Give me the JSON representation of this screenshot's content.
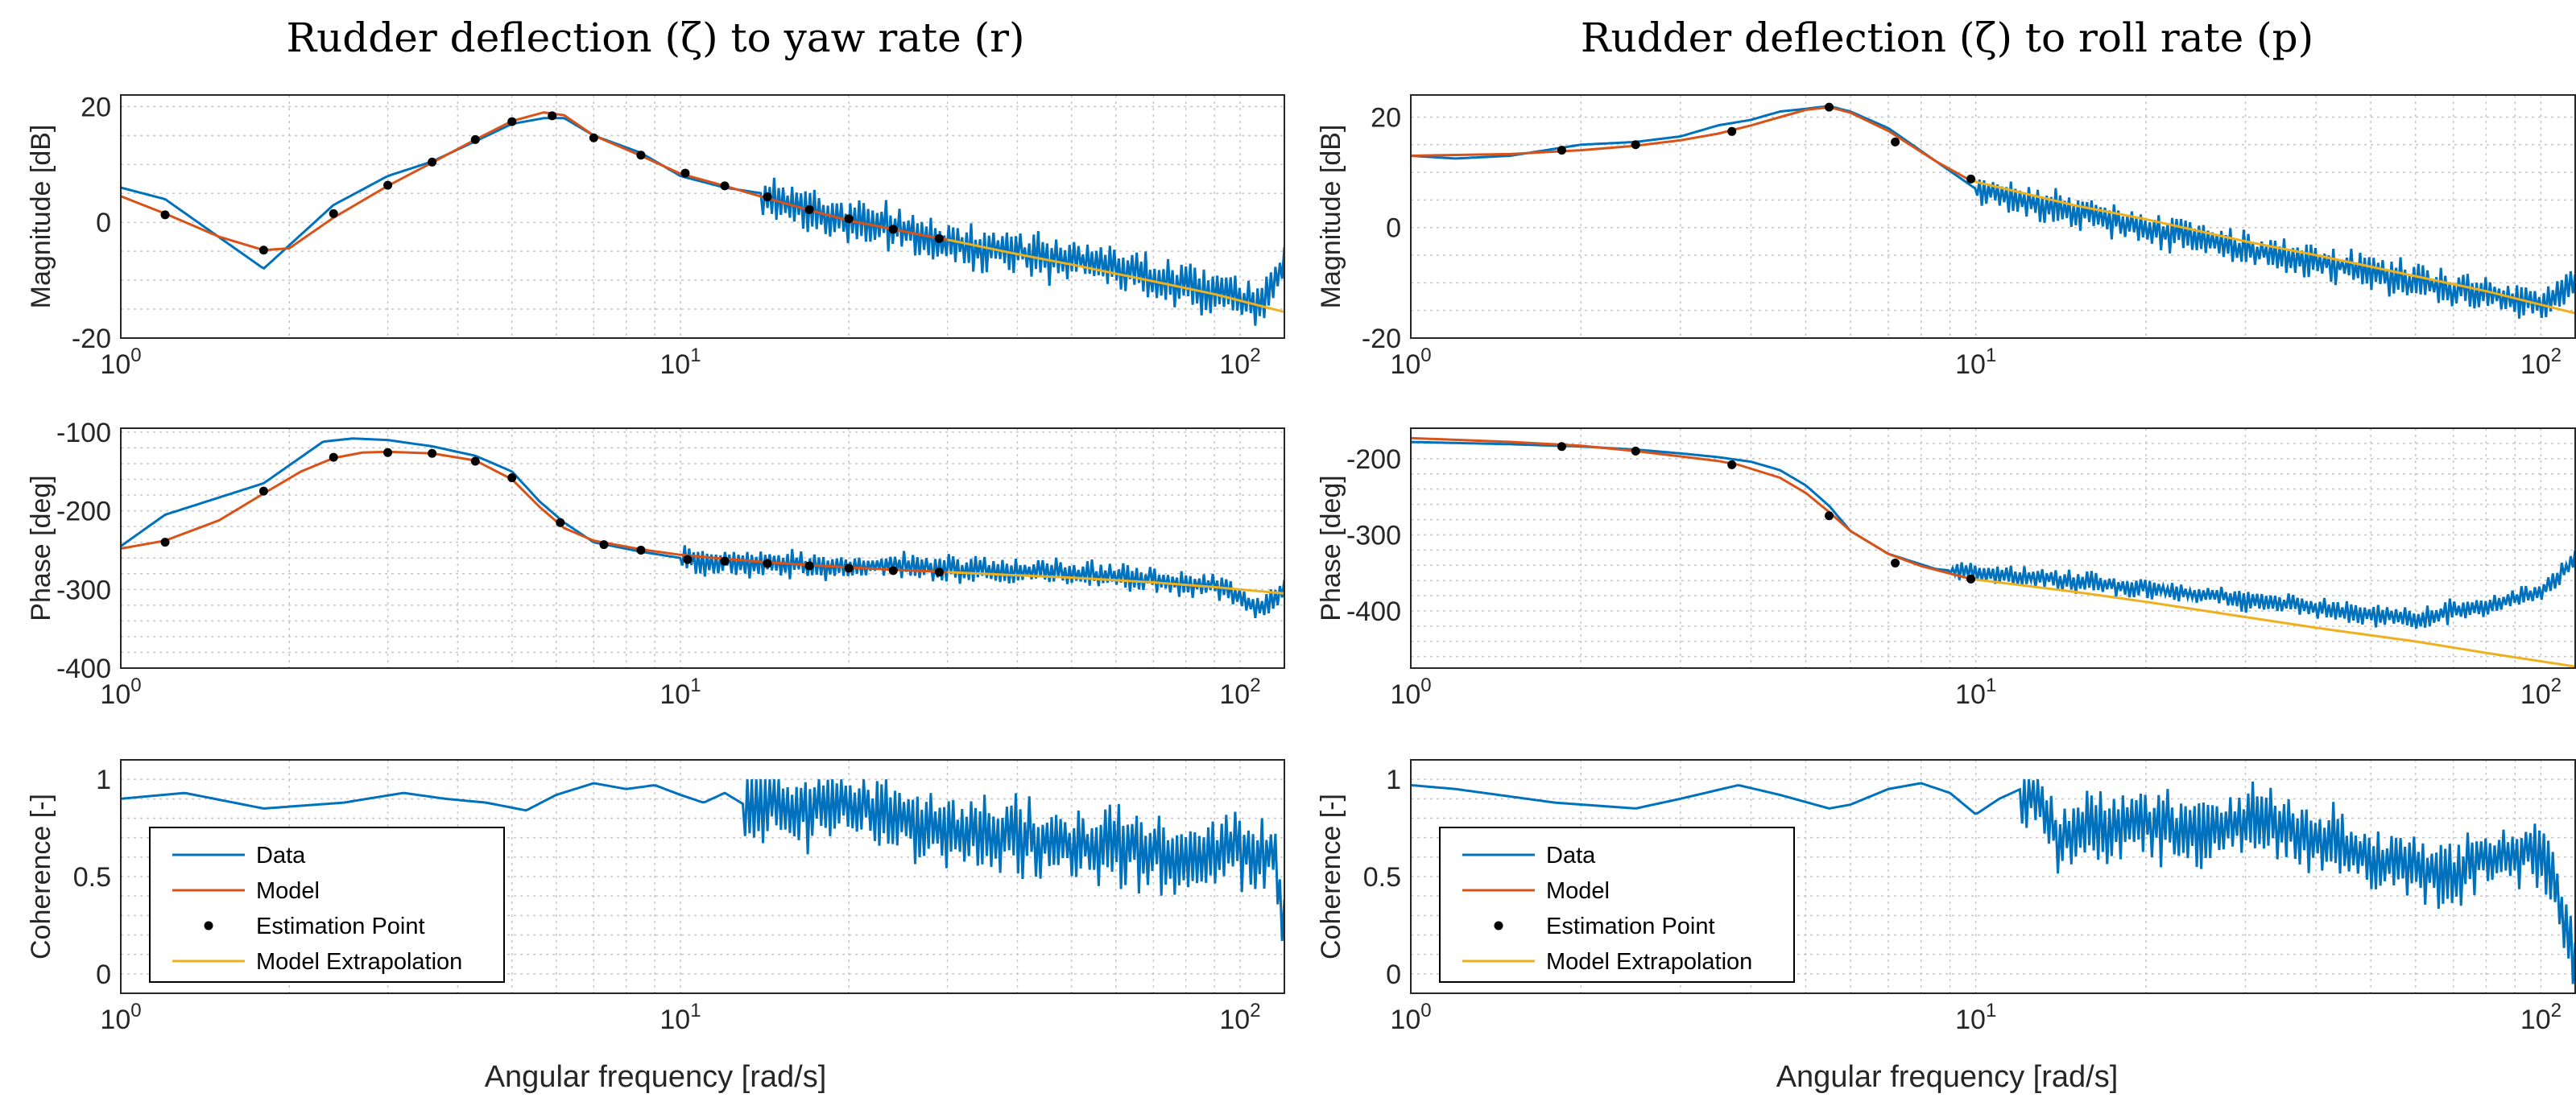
{
  "colors": {
    "data": "#0072BD",
    "model": "#D95319",
    "extrapolation": "#EDB120",
    "estimation": "#000000",
    "grid": "#c6c6c6",
    "axis": "#262626"
  },
  "legend": {
    "data": "Data",
    "model": "Model",
    "estimation": "Estimation Point",
    "extrapolation": "Model Extrapolation"
  },
  "xlabel": "Angular frequency [rad/s]",
  "chart_data": [
    {
      "type": "line",
      "title": "Rudder deflection (ζ) to yaw rate (r)",
      "xscale": "log",
      "xlim": [
        1,
        120
      ],
      "x_ticks": [
        "10^0",
        "10^1",
        "10^2"
      ],
      "panels": [
        {
          "name": "magnitude",
          "ylabel": "Magnitude [dB]",
          "ylim": [
            -20,
            22
          ],
          "yticks": [
            -20,
            0,
            20
          ],
          "data": {
            "x": [
              1,
              1.2,
              1.8,
              2.4,
              3,
              3.6,
              4.3,
              5,
              5.7,
              6.2,
              7,
              8.5,
              10,
              12,
              14,
              17,
              20,
              24,
              28,
              32,
              38,
              45,
              55,
              70,
              90,
              110,
              120
            ],
            "y": [
              6,
              4,
              -8,
              3,
              8,
              10.5,
              14,
              17,
              18,
              18,
              15,
              12,
              8,
              6,
              5,
              2,
              0,
              -1,
              -3,
              -4,
              -5,
              -6,
              -7,
              -10,
              -12,
              -14,
              -7
            ]
          },
          "model": {
            "x": [
              1,
              1.2,
              1.5,
              1.8,
              2,
              2.4,
              3,
              3.6,
              4.3,
              5,
              5.7,
              6.2,
              7,
              8.5,
              10,
              12,
              14,
              17,
              20,
              24,
              28,
              30
            ],
            "y": [
              4.5,
              1.5,
              -2.5,
              -4.8,
              -4.5,
              0.8,
              6.3,
              10.3,
              14.3,
              17.5,
              19,
              18.5,
              15,
              11.5,
              8.4,
              6.3,
              4.4,
              2.1,
              0.3,
              -1.2,
              -2.5,
              -3
            ]
          },
          "extrapolation": {
            "x": [
              30,
              40,
              50,
              70,
              90,
              120
            ],
            "y": [
              -3,
              -5.5,
              -7.3,
              -10.2,
              -12.4,
              -15.5
            ]
          },
          "estimation": {
            "x": [
              1.2,
              1.8,
              2.4,
              3,
              3.6,
              4.3,
              5,
              5.9,
              7,
              8.5,
              10.2,
              12,
              14.3,
              17,
              20,
              24,
              29
            ],
            "y": [
              1.3,
              -4.8,
              1.5,
              6.4,
              10.4,
              14.3,
              17.4,
              18.4,
              14.6,
              11.6,
              8.5,
              6.3,
              4.4,
              2.2,
              0.6,
              -1.2,
              -2.8
            ]
          },
          "ripple": {
            "x_start": 14,
            "amplitude": 5,
            "seed": 11
          }
        },
        {
          "name": "phase",
          "ylabel": "Phase [deg]",
          "ylim": [
            -400,
            -95
          ],
          "yticks": [
            -400,
            -300,
            -200,
            -100
          ],
          "data": {
            "x": [
              1,
              1.2,
              1.8,
              2.3,
              2.6,
              3,
              3.6,
              4.3,
              5,
              5.6,
              6.2,
              7,
              8.5,
              10,
              12,
              14,
              17,
              20,
              24,
              28,
              32,
              38,
              45,
              55,
              70,
              90,
              110,
              120
            ],
            "y": [
              -245,
              -205,
              -165,
              -112,
              -108,
              -110,
              -118,
              -130,
              -150,
              -188,
              -215,
              -240,
              -252,
              -260,
              -265,
              -268,
              -270,
              -272,
              -268,
              -273,
              -275,
              -276,
              -278,
              -282,
              -288,
              -296,
              -325,
              -300
            ]
          },
          "model": {
            "x": [
              1,
              1.2,
              1.5,
              1.8,
              2.1,
              2.4,
              2.7,
              3,
              3.6,
              4.3,
              5,
              5.6,
              6.2,
              7,
              8.5,
              10,
              12,
              14,
              17,
              20,
              24,
              28,
              30
            ],
            "y": [
              -248,
              -238,
              -212,
              -178,
              -150,
              -133,
              -126,
              -125,
              -127,
              -136,
              -160,
              -195,
              -222,
              -238,
              -249,
              -256,
              -261,
              -265,
              -269,
              -272,
              -275,
              -277,
              -278
            ]
          },
          "extrapolation": {
            "x": [
              30,
              40,
              50,
              70,
              90,
              120
            ],
            "y": [
              -278,
              -282,
              -285,
              -291,
              -297,
              -305
            ]
          },
          "estimation": {
            "x": [
              1.2,
              1.8,
              2.4,
              3,
              3.6,
              4.3,
              5,
              6.1,
              7.3,
              8.5,
              10.3,
              12,
              14.3,
              17,
              20,
              24,
              29
            ],
            "y": [
              -240,
              -175,
              -132,
              -126,
              -127,
              -137,
              -158,
              -215,
              -243,
              -250,
              -262,
              -264,
              -267,
              -270,
              -273,
              -276,
              -278
            ]
          },
          "ripple": {
            "x_start": 10,
            "amplitude": 22,
            "seed": 23
          }
        },
        {
          "name": "coherence",
          "ylabel": "Coherence [-]",
          "ylim": [
            -0.1,
            1.1
          ],
          "yticks": [
            0,
            0.5,
            1
          ],
          "data": {
            "x": [
              1,
              1.3,
              1.8,
              2.5,
              3.2,
              3.8,
              4.5,
              5.3,
              6,
              7,
              8,
              9,
              10,
              11,
              12,
              13,
              14,
              16,
              20,
              25,
              30,
              40,
              60,
              80,
              100,
              115,
              120
            ],
            "y": [
              0.9,
              0.93,
              0.85,
              0.88,
              0.93,
              0.9,
              0.88,
              0.84,
              0.92,
              0.98,
              0.95,
              0.97,
              0.92,
              0.88,
              0.93,
              0.87,
              0.9,
              0.85,
              0.88,
              0.8,
              0.75,
              0.7,
              0.65,
              0.6,
              0.65,
              0.6,
              0.2
            ]
          },
          "ripple": {
            "x_start": 13,
            "amplitude": 0.25,
            "seed": 37
          }
        }
      ]
    },
    {
      "type": "line",
      "title": "Rudder deflection (ζ) to roll rate (p)",
      "xscale": "log",
      "xlim": [
        1,
        115
      ],
      "x_ticks": [
        "10^0",
        "10^1",
        "10^2"
      ],
      "panels": [
        {
          "name": "magnitude",
          "ylabel": "Magnitude [dB]",
          "ylim": [
            -20,
            24
          ],
          "yticks": [
            -20,
            0,
            20
          ],
          "data": {
            "x": [
              1,
              1.2,
              1.5,
              2,
              2.5,
              3,
              3.5,
              4,
              4.5,
              5,
              5.5,
              6,
              7,
              8.5,
              10,
              12,
              15,
              20,
              25,
              30,
              40,
              50,
              60,
              80,
              100,
              115
            ],
            "y": [
              13,
              12.5,
              13,
              15,
              15.5,
              16.5,
              18.5,
              19.5,
              21,
              21.5,
              22,
              21,
              18,
              12,
              7,
              5,
              3,
              0,
              -2,
              -4,
              -6,
              -8,
              -10,
              -12,
              -14,
              -10
            ]
          },
          "model": {
            "x": [
              1,
              1.5,
              2,
              2.5,
              3,
              3.5,
              4,
              4.5,
              5,
              5.5,
              6,
              7,
              8.5,
              9.8
            ],
            "y": [
              13,
              13.3,
              14,
              14.8,
              15.8,
              17,
              18.5,
              20,
              21.3,
              21.8,
              20.8,
              17.5,
              12,
              8.5
            ]
          },
          "extrapolation": {
            "x": [
              9.8,
              15,
              20,
              30,
              40,
              60,
              80,
              115
            ],
            "y": [
              8.5,
              4,
              1.5,
              -2.5,
              -5,
              -8.8,
              -11.5,
              -15.5
            ]
          },
          "estimation": {
            "x": [
              1.85,
              2.5,
              3.7,
              5.5,
              7.2,
              9.8
            ],
            "y": [
              14,
              15,
              17.4,
              21.8,
              15.5,
              8.8
            ]
          },
          "ripple": {
            "x_start": 10,
            "amplitude": 4,
            "seed": 53
          }
        },
        {
          "name": "phase",
          "ylabel": "Phase [deg]",
          "ylim": [
            -475,
            -160
          ],
          "yticks": [
            -400,
            -300,
            -200
          ],
          "data": {
            "x": [
              1,
              1.5,
              2,
              2.5,
              3,
              3.5,
              4,
              4.5,
              5,
              5.5,
              6,
              7,
              8.5,
              10,
              12,
              15,
              20,
              25,
              30,
              40,
              50,
              60,
              70,
              80,
              100,
              115
            ],
            "y": [
              -178,
              -181,
              -184,
              -188,
              -193,
              -198,
              -204,
              -215,
              -235,
              -262,
              -295,
              -325,
              -345,
              -350,
              -355,
              -360,
              -370,
              -378,
              -385,
              -395,
              -405,
              -410,
              -400,
              -395,
              -375,
              -335
            ]
          },
          "model": {
            "x": [
              1,
              1.5,
              2,
              2.5,
              3,
              3.5,
              3.8,
              4.5,
              5,
              5.5,
              6,
              7,
              8,
              9.8
            ],
            "y": [
              -173,
              -178,
              -183,
              -190,
              -197,
              -203,
              -208,
              -225,
              -245,
              -270,
              -295,
              -325,
              -341,
              -358
            ]
          },
          "extrapolation": {
            "x": [
              9.8,
              15,
              20,
              30,
              40,
              60,
              80,
              115
            ],
            "y": [
              -358,
              -375,
              -388,
              -408,
              -422,
              -440,
              -455,
              -473
            ]
          },
          "estimation": {
            "x": [
              1.85,
              2.5,
              3.7,
              5.5,
              7.2,
              9.8
            ],
            "y": [
              -184,
              -190,
              -208,
              -275,
              -337,
              -358
            ]
          },
          "ripple": {
            "x_start": 9,
            "amplitude": 18,
            "seed": 71
          }
        },
        {
          "name": "coherence",
          "ylabel": "Coherence [-]",
          "ylim": [
            -0.1,
            1.1
          ],
          "yticks": [
            0,
            0.5,
            1
          ],
          "data": {
            "x": [
              1,
              1.2,
              1.8,
              2.5,
              3,
              3.8,
              4.5,
              5.5,
              6,
              7,
              8,
              9,
              10,
              11,
              12,
              13,
              14,
              16,
              20,
              25,
              30,
              40,
              50,
              60,
              70,
              80,
              100,
              115
            ],
            "y": [
              0.97,
              0.95,
              0.88,
              0.85,
              0.9,
              0.97,
              0.92,
              0.85,
              0.87,
              0.95,
              0.98,
              0.93,
              0.82,
              0.9,
              0.95,
              0.92,
              0.7,
              0.75,
              0.78,
              0.7,
              0.8,
              0.7,
              0.6,
              0.55,
              0.5,
              0.6,
              0.65,
              0.1
            ]
          },
          "ripple": {
            "x_start": 12,
            "amplitude": 0.22,
            "seed": 91
          }
        }
      ]
    }
  ]
}
